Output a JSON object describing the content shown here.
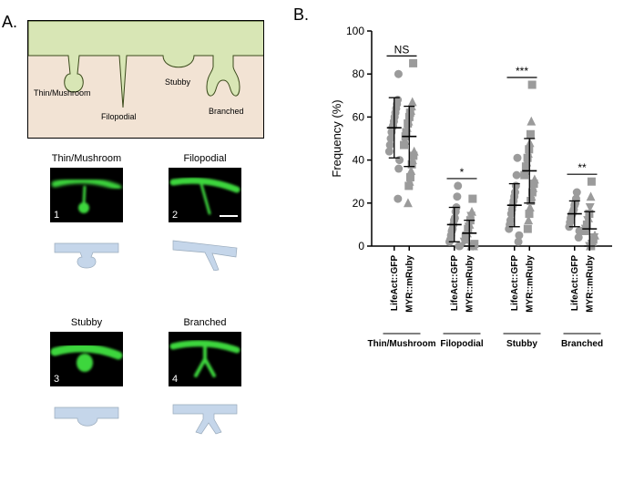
{
  "panelA": {
    "label": "A.",
    "diagram": {
      "bg_color": "#f2e3d4",
      "cell_color": "#d8e6b5",
      "stroke": "#3a4a1a",
      "labels": {
        "thin": "Thin/Mushroom",
        "filo": "Filopodial",
        "stubby": "Stubby",
        "branched": "Branched"
      }
    },
    "micrographs": [
      {
        "title": "Thin/Mushroom",
        "num": "1",
        "shape": "thin"
      },
      {
        "title": "Filopodial",
        "num": "2",
        "shape": "filo",
        "scalebar": true
      },
      {
        "title": "Stubby",
        "num": "3",
        "shape": "stubby"
      },
      {
        "title": "Branched",
        "num": "4",
        "shape": "branched"
      }
    ],
    "green": "#3dd63d",
    "render_color": "#c5d6ea"
  },
  "panelB": {
    "label": "B.",
    "chart": {
      "type": "scatter-stripplot",
      "ylabel": "Frequency (%)",
      "ylim": [
        0,
        100
      ],
      "ytick_step": 20,
      "categories": [
        "Thin/Mushroom",
        "Filopodial",
        "Stubby",
        "Branched"
      ],
      "conditions": [
        "LifeAct::GFP",
        "MYR::mRuby"
      ],
      "sig_labels": [
        "NS",
        "*",
        "***",
        "**"
      ],
      "cat_label_fontsize": 10,
      "cond_label_fontsize": 10,
      "axis_fontsize": 12,
      "marker_size": 4.5,
      "marker_color": "#9b9b9b",
      "error_color": "#000000",
      "axis_color": "#000000",
      "series": [
        {
          "cat": "Thin/Mushroom",
          "cond": "LifeAct::GFP",
          "mean": 55,
          "sd": 14,
          "points": [
            {
              "y": 80,
              "m": "c"
            },
            {
              "y": 68,
              "m": "c"
            },
            {
              "y": 66,
              "m": "c"
            },
            {
              "y": 64,
              "m": "c"
            },
            {
              "y": 62,
              "m": "c"
            },
            {
              "y": 60,
              "m": "c"
            },
            {
              "y": 58,
              "m": "c"
            },
            {
              "y": 56,
              "m": "c"
            },
            {
              "y": 55,
              "m": "c"
            },
            {
              "y": 53,
              "m": "c"
            },
            {
              "y": 50,
              "m": "c"
            },
            {
              "y": 47,
              "m": "c"
            },
            {
              "y": 44,
              "m": "c"
            },
            {
              "y": 40,
              "m": "c"
            },
            {
              "y": 36,
              "m": "c"
            },
            {
              "y": 22,
              "m": "c"
            }
          ]
        },
        {
          "cat": "Thin/Mushroom",
          "cond": "MYR::mRuby",
          "mean": 51,
          "sd": 14,
          "points": [
            {
              "y": 85,
              "m": "s"
            },
            {
              "y": 67,
              "m": "t"
            },
            {
              "y": 65,
              "m": "t"
            },
            {
              "y": 63,
              "m": "t"
            },
            {
              "y": 62,
              "m": "s"
            },
            {
              "y": 60,
              "m": "s"
            },
            {
              "y": 58,
              "m": "t"
            },
            {
              "y": 57,
              "m": "s"
            },
            {
              "y": 55,
              "m": "t"
            },
            {
              "y": 53,
              "m": "s"
            },
            {
              "y": 51,
              "m": "s"
            },
            {
              "y": 49,
              "m": "t"
            },
            {
              "y": 47,
              "m": "s"
            },
            {
              "y": 44,
              "m": "t"
            },
            {
              "y": 42,
              "m": "s"
            },
            {
              "y": 40,
              "m": "t"
            },
            {
              "y": 38,
              "m": "s"
            },
            {
              "y": 35,
              "m": "t"
            },
            {
              "y": 32,
              "m": "s"
            },
            {
              "y": 30,
              "m": "t"
            },
            {
              "y": 28,
              "m": "s"
            },
            {
              "y": 20,
              "m": "t"
            }
          ]
        },
        {
          "cat": "Filopodial",
          "cond": "LifeAct::GFP",
          "mean": 10,
          "sd": 8,
          "points": [
            {
              "y": 28,
              "m": "c"
            },
            {
              "y": 23,
              "m": "c"
            },
            {
              "y": 18,
              "m": "c"
            },
            {
              "y": 16,
              "m": "c"
            },
            {
              "y": 13,
              "m": "c"
            },
            {
              "y": 12,
              "m": "c"
            },
            {
              "y": 10,
              "m": "c"
            },
            {
              "y": 8,
              "m": "c"
            },
            {
              "y": 7,
              "m": "c"
            },
            {
              "y": 5,
              "m": "c"
            },
            {
              "y": 3,
              "m": "c"
            },
            {
              "y": 2,
              "m": "c"
            },
            {
              "y": 0,
              "m": "c"
            },
            {
              "y": 0,
              "m": "c"
            }
          ]
        },
        {
          "cat": "Filopodial",
          "cond": "MYR::mRuby",
          "mean": 6,
          "sd": 6,
          "points": [
            {
              "y": 22,
              "m": "s"
            },
            {
              "y": 16,
              "m": "t"
            },
            {
              "y": 14,
              "m": "d"
            },
            {
              "y": 12,
              "m": "s"
            },
            {
              "y": 10,
              "m": "t"
            },
            {
              "y": 9,
              "m": "d"
            },
            {
              "y": 8,
              "m": "s"
            },
            {
              "y": 6,
              "m": "t"
            },
            {
              "y": 5,
              "m": "d"
            },
            {
              "y": 4,
              "m": "s"
            },
            {
              "y": 3,
              "m": "t"
            },
            {
              "y": 2,
              "m": "d"
            },
            {
              "y": 1,
              "m": "s"
            },
            {
              "y": 0,
              "m": "t"
            },
            {
              "y": 0,
              "m": "d"
            },
            {
              "y": 0,
              "m": "s"
            },
            {
              "y": 0,
              "m": "t"
            }
          ]
        },
        {
          "cat": "Stubby",
          "cond": "LifeAct::GFP",
          "mean": 19,
          "sd": 10,
          "points": [
            {
              "y": 41,
              "m": "c"
            },
            {
              "y": 33,
              "m": "c"
            },
            {
              "y": 28,
              "m": "c"
            },
            {
              "y": 25,
              "m": "c"
            },
            {
              "y": 23,
              "m": "c"
            },
            {
              "y": 21,
              "m": "c"
            },
            {
              "y": 19,
              "m": "c"
            },
            {
              "y": 17,
              "m": "c"
            },
            {
              "y": 15,
              "m": "c"
            },
            {
              "y": 12,
              "m": "c"
            },
            {
              "y": 10,
              "m": "c"
            },
            {
              "y": 8,
              "m": "c"
            },
            {
              "y": 5,
              "m": "c"
            },
            {
              "y": 2,
              "m": "c"
            }
          ]
        },
        {
          "cat": "Stubby",
          "cond": "MYR::mRuby",
          "mean": 35,
          "sd": 15,
          "points": [
            {
              "y": 75,
              "m": "s"
            },
            {
              "y": 58,
              "m": "t"
            },
            {
              "y": 52,
              "m": "s"
            },
            {
              "y": 48,
              "m": "t"
            },
            {
              "y": 45,
              "m": "s"
            },
            {
              "y": 43,
              "m": "t"
            },
            {
              "y": 41,
              "m": "s"
            },
            {
              "y": 39,
              "m": "t"
            },
            {
              "y": 37,
              "m": "s"
            },
            {
              "y": 35,
              "m": "t"
            },
            {
              "y": 33,
              "m": "s"
            },
            {
              "y": 31,
              "m": "t"
            },
            {
              "y": 29,
              "m": "s"
            },
            {
              "y": 27,
              "m": "t"
            },
            {
              "y": 25,
              "m": "s"
            },
            {
              "y": 23,
              "m": "t"
            },
            {
              "y": 21,
              "m": "s"
            },
            {
              "y": 18,
              "m": "t"
            },
            {
              "y": 15,
              "m": "s"
            },
            {
              "y": 12,
              "m": "t"
            },
            {
              "y": 8,
              "m": "s"
            }
          ]
        },
        {
          "cat": "Branched",
          "cond": "LifeAct::GFP",
          "mean": 15,
          "sd": 6,
          "points": [
            {
              "y": 25,
              "m": "c"
            },
            {
              "y": 22,
              "m": "c"
            },
            {
              "y": 20,
              "m": "c"
            },
            {
              "y": 19,
              "m": "c"
            },
            {
              "y": 17,
              "m": "c"
            },
            {
              "y": 16,
              "m": "c"
            },
            {
              "y": 15,
              "m": "c"
            },
            {
              "y": 14,
              "m": "c"
            },
            {
              "y": 13,
              "m": "c"
            },
            {
              "y": 11,
              "m": "c"
            },
            {
              "y": 9,
              "m": "c"
            },
            {
              "y": 7,
              "m": "c"
            },
            {
              "y": 4,
              "m": "c"
            }
          ]
        },
        {
          "cat": "Branched",
          "cond": "MYR::mRuby",
          "mean": 8,
          "sd": 8,
          "points": [
            {
              "y": 30,
              "m": "s"
            },
            {
              "y": 23,
              "m": "t"
            },
            {
              "y": 18,
              "m": "d"
            },
            {
              "y": 15,
              "m": "s"
            },
            {
              "y": 13,
              "m": "t"
            },
            {
              "y": 12,
              "m": "d"
            },
            {
              "y": 10,
              "m": "s"
            },
            {
              "y": 9,
              "m": "t"
            },
            {
              "y": 8,
              "m": "d"
            },
            {
              "y": 7,
              "m": "s"
            },
            {
              "y": 5,
              "m": "t"
            },
            {
              "y": 4,
              "m": "d"
            },
            {
              "y": 3,
              "m": "s"
            },
            {
              "y": 2,
              "m": "t"
            },
            {
              "y": 1,
              "m": "d"
            },
            {
              "y": 0,
              "m": "s"
            },
            {
              "y": 0,
              "m": "t"
            },
            {
              "y": 0,
              "m": "d"
            }
          ]
        }
      ]
    }
  }
}
